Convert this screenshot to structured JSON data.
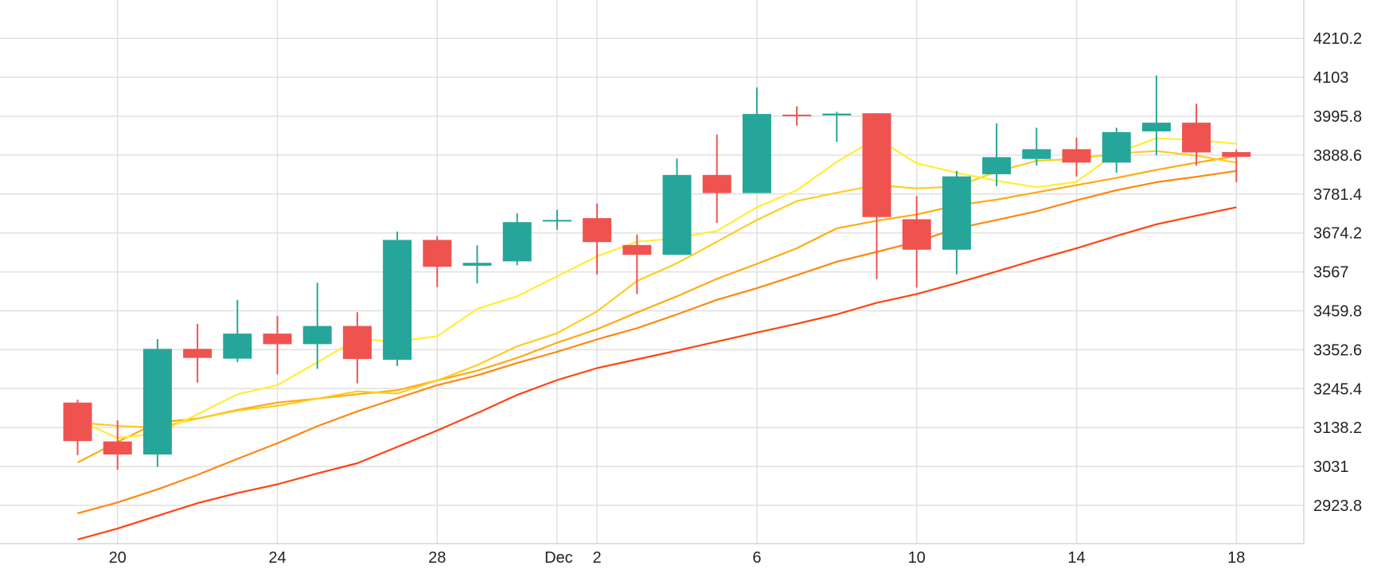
{
  "chart_data": {
    "type": "candlestick",
    "x_tick_labels": [
      "20",
      "24",
      "28",
      "Dec",
      "2",
      "6",
      "10",
      "14",
      "18"
    ],
    "y_tick_labels": [
      "2923.8",
      "3031",
      "3138.2",
      "3245.4",
      "3352.6",
      "3459.8",
      "3567",
      "3674.2",
      "3781.4",
      "3888.6",
      "3995.8",
      "4103",
      "4210.2"
    ],
    "ylim": [
      2816.6,
      4317.4
    ],
    "grid": true,
    "colors": {
      "up": "#26a69a",
      "down": "#ef5350",
      "grid": "#e0e0e0",
      "axis": "#d6d6d6"
    },
    "candles": [
      {
        "date": "Nov 19",
        "open": 3207,
        "high": 3215,
        "low": 3062,
        "close": 3101
      },
      {
        "date": "Nov 20",
        "open": 3100,
        "high": 3158,
        "low": 3022,
        "close": 3064
      },
      {
        "date": "Nov 21",
        "open": 3064,
        "high": 3382,
        "low": 3030,
        "close": 3355
      },
      {
        "date": "Nov 22",
        "open": 3355,
        "high": 3424,
        "low": 3262,
        "close": 3330
      },
      {
        "date": "Nov 23",
        "open": 3328,
        "high": 3490,
        "low": 3318,
        "close": 3397
      },
      {
        "date": "Nov 24",
        "open": 3397,
        "high": 3445,
        "low": 3285,
        "close": 3368
      },
      {
        "date": "Nov 25",
        "open": 3368,
        "high": 3537,
        "low": 3300,
        "close": 3418
      },
      {
        "date": "Nov 26",
        "open": 3418,
        "high": 3456,
        "low": 3260,
        "close": 3327
      },
      {
        "date": "Nov 27",
        "open": 3325,
        "high": 3678,
        "low": 3308,
        "close": 3655
      },
      {
        "date": "Nov 28",
        "open": 3655,
        "high": 3665,
        "low": 3525,
        "close": 3581
      },
      {
        "date": "Nov 29",
        "open": 3584,
        "high": 3640,
        "low": 3535,
        "close": 3592
      },
      {
        "date": "Nov 30",
        "open": 3596,
        "high": 3728,
        "low": 3585,
        "close": 3704
      },
      {
        "date": "Dec 1",
        "open": 3710,
        "high": 3738,
        "low": 3683,
        "close": 3710
      },
      {
        "date": "Dec 2",
        "open": 3715,
        "high": 3755,
        "low": 3560,
        "close": 3649
      },
      {
        "date": "Dec 3",
        "open": 3641,
        "high": 3670,
        "low": 3506,
        "close": 3614
      },
      {
        "date": "Dec 4",
        "open": 3614,
        "high": 3879,
        "low": 3614,
        "close": 3834
      },
      {
        "date": "Dec 5",
        "open": 3834,
        "high": 3945,
        "low": 3702,
        "close": 3784
      },
      {
        "date": "Dec 6",
        "open": 3784,
        "high": 4075,
        "low": 3784,
        "close": 4002
      },
      {
        "date": "Dec 7",
        "open": 4000,
        "high": 4023,
        "low": 3970,
        "close": 3997
      },
      {
        "date": "Dec 8",
        "open": 3998,
        "high": 4008,
        "low": 3925,
        "close": 4003
      },
      {
        "date": "Dec 9",
        "open": 4004,
        "high": 4004,
        "low": 3547,
        "close": 3718
      },
      {
        "date": "Dec 10",
        "open": 3712,
        "high": 3776,
        "low": 3524,
        "close": 3628
      },
      {
        "date": "Dec 11",
        "open": 3628,
        "high": 3845,
        "low": 3560,
        "close": 3830
      },
      {
        "date": "Dec 12",
        "open": 3836,
        "high": 3976,
        "low": 3803,
        "close": 3883
      },
      {
        "date": "Dec 13",
        "open": 3878,
        "high": 3964,
        "low": 3860,
        "close": 3905
      },
      {
        "date": "Dec 14",
        "open": 3905,
        "high": 3937,
        "low": 3830,
        "close": 3868
      },
      {
        "date": "Dec 15",
        "open": 3868,
        "high": 3964,
        "low": 3840,
        "close": 3952
      },
      {
        "date": "Dec 16",
        "open": 3954,
        "high": 4108,
        "low": 3888,
        "close": 3978
      },
      {
        "date": "Dec 17",
        "open": 3978,
        "high": 4030,
        "low": 3860,
        "close": 3896
      },
      {
        "date": "Dec 18",
        "open": 3897,
        "high": 3904,
        "low": 3814,
        "close": 3884
      }
    ],
    "moving_averages": [
      {
        "period": 5,
        "color": "#ffee33",
        "values": [
          3158,
          3110,
          3122,
          3175,
          3230,
          3255,
          3318,
          3382,
          3375,
          3390,
          3465,
          3500,
          3555,
          3610,
          3650,
          3660,
          3680,
          3745,
          3792,
          3870,
          3935,
          3866,
          3840,
          3818,
          3800,
          3815,
          3895,
          3935,
          3930,
          3920
        ]
      },
      {
        "period": 10,
        "color": "#ffcc22",
        "values": [
          3152,
          3143,
          3138,
          3163,
          3185,
          3198,
          3218,
          3238,
          3232,
          3268,
          3310,
          3362,
          3398,
          3458,
          3542,
          3591,
          3650,
          3710,
          3762,
          3785,
          3806,
          3797,
          3802,
          3843,
          3873,
          3878,
          3893,
          3900,
          3887,
          3868
        ]
      },
      {
        "period": 20,
        "color": "#ffaa11",
        "values": [
          3042,
          3099,
          3152,
          3163,
          3187,
          3207,
          3218,
          3230,
          3241,
          3268,
          3295,
          3330,
          3372,
          3409,
          3455,
          3500,
          3548,
          3589,
          3632,
          3687,
          3708,
          3725,
          3750,
          3766,
          3786,
          3806,
          3826,
          3848,
          3868,
          3886
        ]
      },
      {
        "period": 30,
        "color": "#ff8811",
        "values": [
          2902,
          2932,
          2968,
          3008,
          3052,
          3095,
          3142,
          3183,
          3219,
          3255,
          3282,
          3316,
          3347,
          3381,
          3412,
          3450,
          3490,
          3522,
          3558,
          3595,
          3622,
          3650,
          3687,
          3710,
          3734,
          3764,
          3792,
          3814,
          3829,
          3845
        ]
      },
      {
        "period": 60,
        "color": "#ff4411",
        "values": [
          2830,
          2860,
          2895,
          2930,
          2958,
          2982,
          3012,
          3040,
          3085,
          3130,
          3178,
          3228,
          3269,
          3302,
          3326,
          3350,
          3375,
          3400,
          3424,
          3450,
          3482,
          3506,
          3536,
          3568,
          3601,
          3632,
          3666,
          3698,
          3722,
          3745
        ]
      }
    ]
  }
}
